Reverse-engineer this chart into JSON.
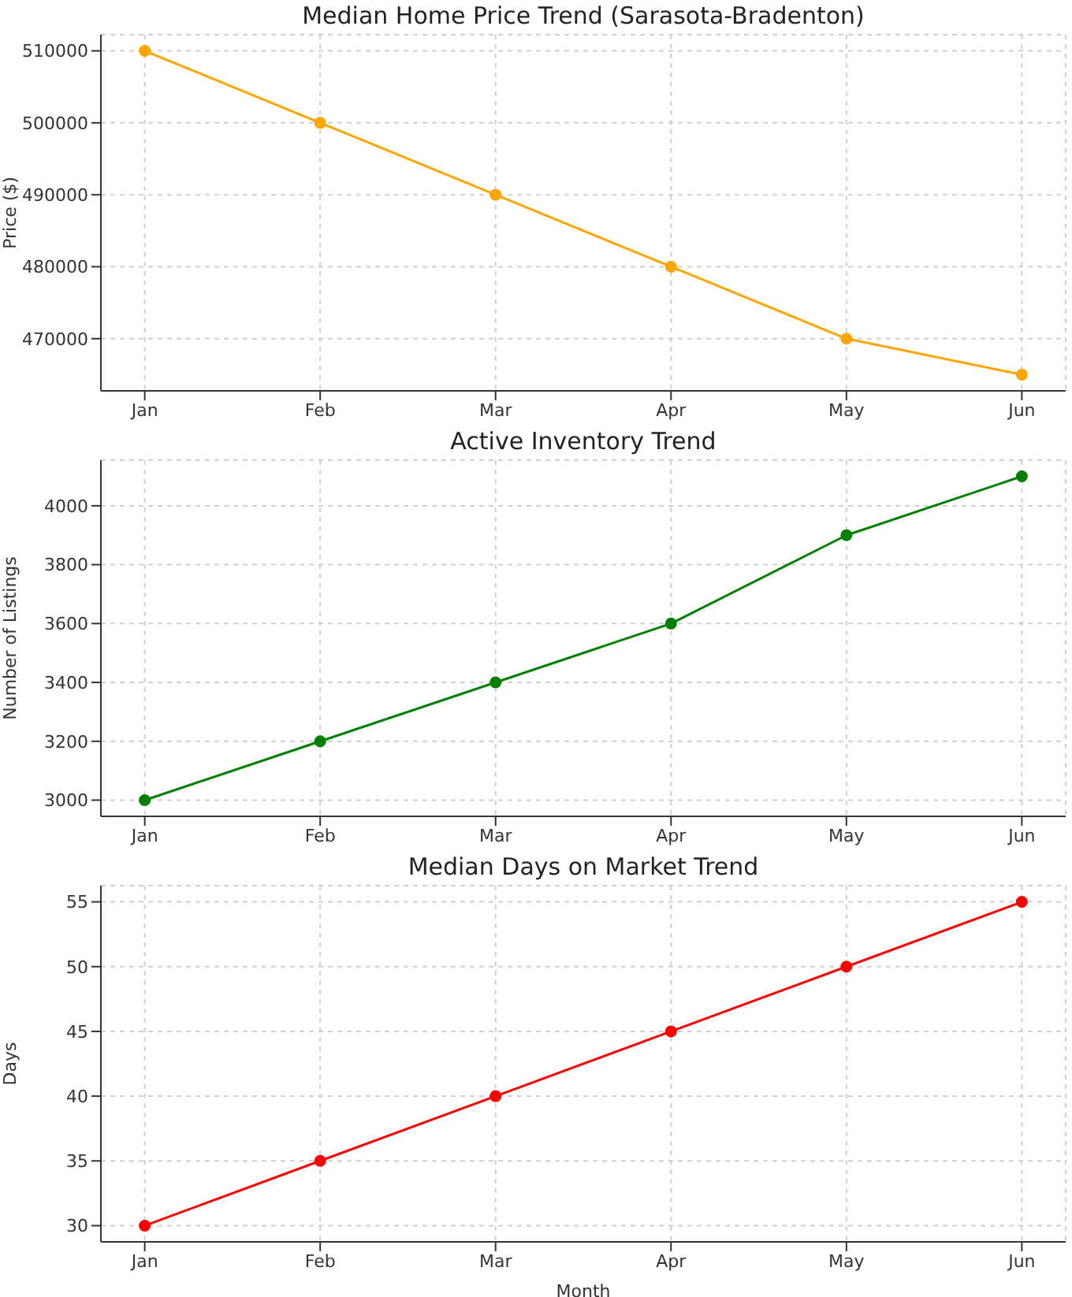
{
  "chart_data": [
    {
      "type": "line",
      "title": "Median Home Price Trend (Sarasota-Bradenton)",
      "ylabel": "Price ($)",
      "categories": [
        "Jan",
        "Feb",
        "Mar",
        "Apr",
        "May",
        "Jun"
      ],
      "series": [
        {
          "color": "#ffa500",
          "values": [
            510000,
            500000,
            490000,
            480000,
            470000,
            465000
          ]
        }
      ],
      "ylim": [
        462750,
        512250
      ],
      "yticks": [
        470000,
        480000,
        490000,
        500000,
        510000
      ],
      "grid": true,
      "marker": "circle",
      "line_style": "solid"
    },
    {
      "type": "line",
      "title": "Active Inventory Trend",
      "ylabel": "Number of Listings",
      "categories": [
        "Jan",
        "Feb",
        "Mar",
        "Apr",
        "May",
        "Jun"
      ],
      "series": [
        {
          "color": "#008000",
          "values": [
            3000,
            3200,
            3400,
            3600,
            3900,
            4100
          ]
        }
      ],
      "ylim": [
        2945,
        4155
      ],
      "yticks": [
        3000,
        3200,
        3400,
        3600,
        3800,
        4000
      ],
      "grid": true,
      "marker": "circle",
      "line_style": "solid"
    },
    {
      "type": "line",
      "title": "Median Days on Market Trend",
      "xlabel": "Month",
      "ylabel": "Days",
      "categories": [
        "Jan",
        "Feb",
        "Mar",
        "Apr",
        "May",
        "Jun"
      ],
      "series": [
        {
          "color": "#ff0000",
          "values": [
            30,
            35,
            40,
            45,
            50,
            55
          ]
        }
      ],
      "ylim": [
        28.75,
        56.25
      ],
      "yticks": [
        30,
        35,
        40,
        45,
        50,
        55
      ],
      "grid": true,
      "marker": "circle",
      "line_style": "solid"
    }
  ]
}
